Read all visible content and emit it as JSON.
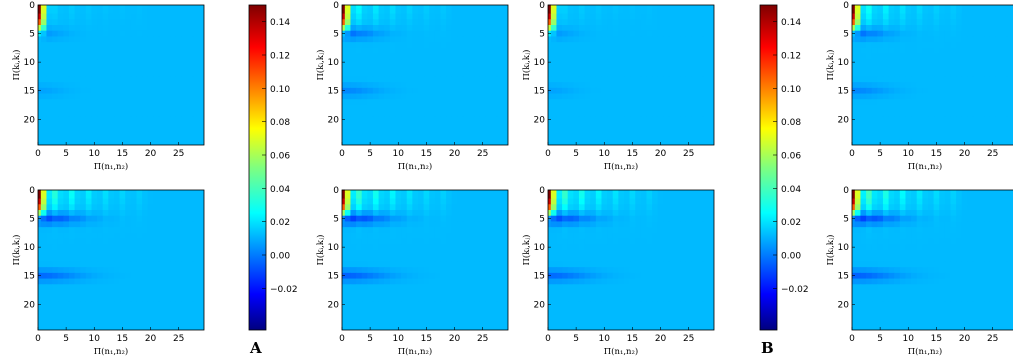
{
  "chart_data": {
    "type": "heatmap",
    "colormap": "jet",
    "xlabel": "Π(n₁,n₂)",
    "ylabel": "Π(kᵢ,kⱼ)",
    "x_ticks": [
      "0",
      "5",
      "10",
      "15",
      "20",
      "25"
    ],
    "y_ticks": [
      "0",
      "5",
      "10",
      "15",
      "20"
    ],
    "xlim": [
      0,
      29
    ],
    "ylim": [
      0,
      24
    ],
    "colorbar": {
      "range": [
        -0.045,
        0.15
      ],
      "ticks": [
        "0.14",
        "0.12",
        "0.10",
        "0.08",
        "0.06",
        "0.04",
        "0.02",
        "0.00",
        "−0.02"
      ],
      "tick_values": [
        0.14,
        0.12,
        0.1,
        0.08,
        0.06,
        0.04,
        0.02,
        0.0,
        -0.02
      ]
    },
    "groups": [
      {
        "label": "A",
        "panels": [
          {
            "row": 0,
            "col": 0,
            "peak": 0.15,
            "stripes": 0.15,
            "bands": 0.25
          },
          {
            "row": 0,
            "col": 1,
            "peak": 0.15,
            "stripes": 0.45,
            "bands": 0.55
          },
          {
            "row": 1,
            "col": 0,
            "peak": 0.15,
            "stripes": 0.75,
            "bands": 0.85
          },
          {
            "row": 1,
            "col": 1,
            "peak": 0.15,
            "stripes": 0.85,
            "bands": 0.95
          }
        ]
      },
      {
        "label": "B",
        "panels": [
          {
            "row": 0,
            "col": 0,
            "peak": 0.15,
            "stripes": 0.15,
            "bands": 0.25
          },
          {
            "row": 0,
            "col": 1,
            "peak": 0.15,
            "stripes": 0.55,
            "bands": 0.55
          },
          {
            "row": 1,
            "col": 0,
            "peak": 0.15,
            "stripes": 0.85,
            "bands": 0.85
          },
          {
            "row": 1,
            "col": 1,
            "peak": 0.15,
            "stripes": 0.95,
            "bands": 0.95
          }
        ]
      }
    ]
  },
  "labels": {
    "xlabel_text": "Π(n₁,n₂)",
    "ylabel_text": "Π(kᵢ,kⱼ)",
    "group_a": "A",
    "group_b": "B"
  }
}
